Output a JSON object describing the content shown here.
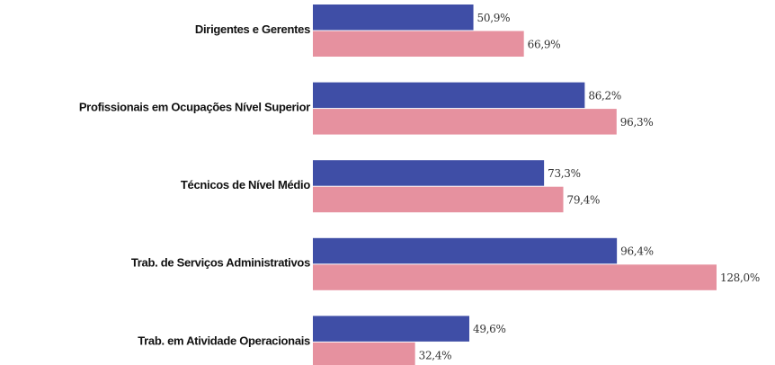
{
  "chart_data": {
    "type": "hbar",
    "categories": [
      "Dirigentes e Gerentes",
      "Profissionais em Ocupações Nível Superior",
      "Técnicos de Nível Médio",
      "Trab. de Serviços Administrativos",
      "Trab. em Atividade Operacionais"
    ],
    "series": [
      {
        "color": "#3f4ea6",
        "values": [
          50.9,
          86.2,
          73.3,
          96.4,
          49.6
        ],
        "value_labels": [
          "50,9%",
          "86,2%",
          "73,3%",
          "96,4%",
          "49,6%"
        ]
      },
      {
        "color": "#e6919f",
        "values": [
          66.9,
          96.3,
          79.4,
          128.0,
          32.4
        ],
        "value_labels": [
          "66,9%",
          "96,3%",
          "79,4%",
          "128,0%",
          "32,4%"
        ]
      }
    ]
  }
}
